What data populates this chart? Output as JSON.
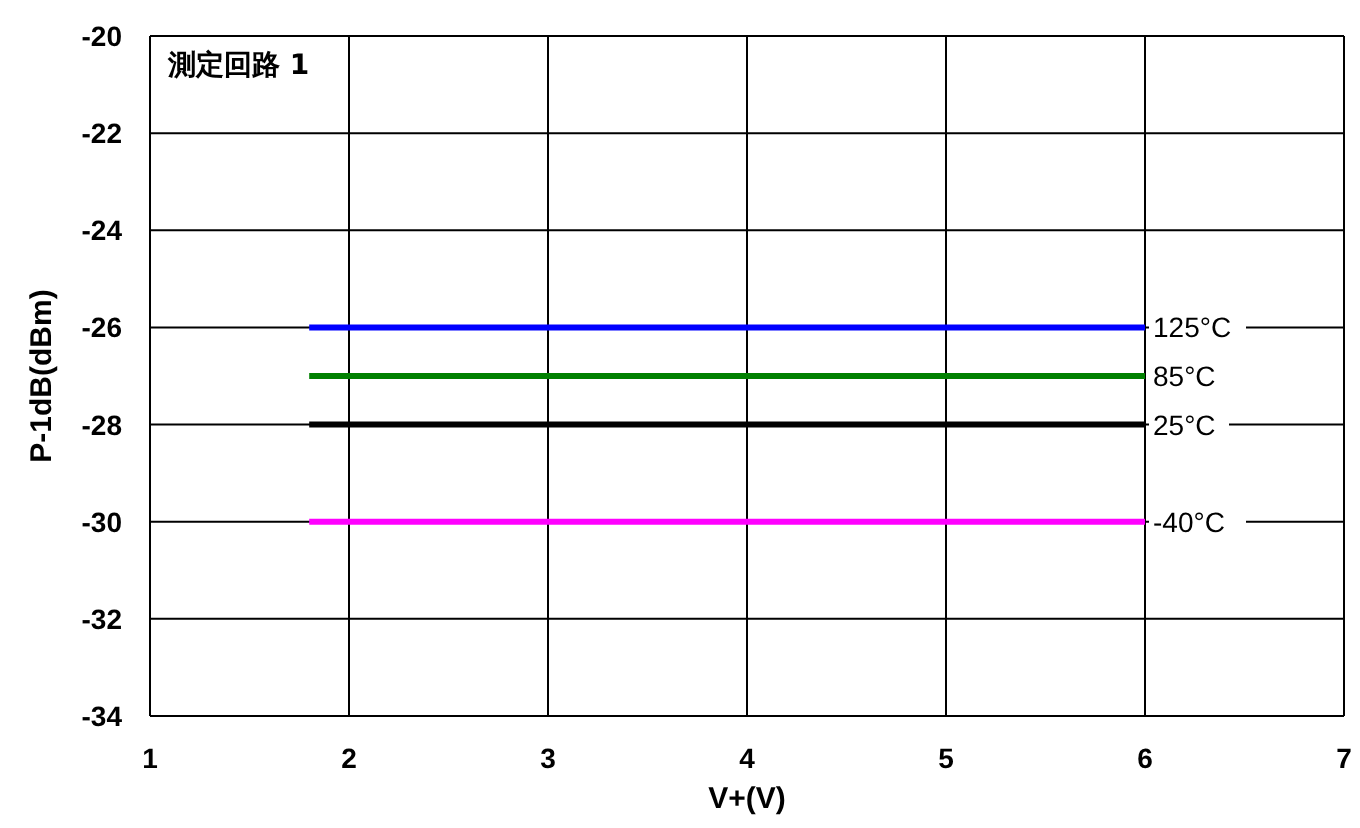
{
  "chart_data": {
    "type": "line",
    "xlabel": "V+(V)",
    "ylabel": "P-1dB(dBm)",
    "annotations": [
      "測定回路 1"
    ],
    "xlim": [
      1,
      7
    ],
    "xticks": [
      1,
      2,
      3,
      4,
      5,
      6,
      7
    ],
    "ylim": [
      -34,
      -20
    ],
    "yticks": [
      -34,
      -32,
      -30,
      -28,
      -26,
      -24,
      -22,
      -20
    ],
    "grid": true,
    "x": [
      1.8,
      6
    ],
    "series": [
      {
        "name": "125°C",
        "color": "#0000ff",
        "values": [
          -26,
          -26
        ]
      },
      {
        "name": "85°C",
        "color": "#008000",
        "values": [
          -27,
          -27
        ]
      },
      {
        "name": "25°C",
        "color": "#000000",
        "values": [
          -28,
          -28
        ]
      },
      {
        "name": "-40°C",
        "color": "#ff00ff",
        "values": [
          -30,
          -30
        ]
      }
    ]
  }
}
